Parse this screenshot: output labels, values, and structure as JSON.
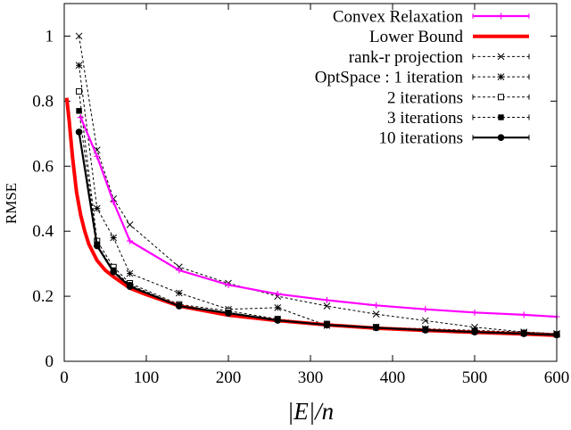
{
  "chart_data": {
    "type": "line",
    "title": "",
    "xlabel": "|E|/n",
    "ylabel": "RMSE",
    "xlim": [
      0,
      600
    ],
    "ylim": [
      0,
      1.1
    ],
    "xticks": [
      0,
      100,
      200,
      300,
      400,
      500,
      600
    ],
    "yticks": [
      0,
      0.2,
      0.4,
      0.6,
      0.8,
      1
    ],
    "xtick_labels": [
      "0",
      "100",
      "200",
      "300",
      "400",
      "500",
      "600"
    ],
    "ytick_labels": [
      "0",
      "0.2",
      "0.4",
      "0.6",
      "0.8",
      "1"
    ],
    "grid": false,
    "legend_position": "top-right",
    "series": [
      {
        "name": "Convex Relaxation",
        "color": "#ff00ff",
        "style": "solid",
        "marker": "plus",
        "x": [
          20,
          40,
          60,
          80,
          140,
          200,
          260,
          320,
          380,
          440,
          500,
          560,
          600
        ],
        "y": [
          0.75,
          0.63,
          0.49,
          0.37,
          0.28,
          0.235,
          0.207,
          0.188,
          0.172,
          0.16,
          0.15,
          0.143,
          0.137
        ]
      },
      {
        "name": "Lower Bound",
        "color": "#ff0000",
        "style": "solid",
        "marker": "none",
        "x": [
          3,
          6,
          10,
          15,
          20,
          25,
          30,
          40,
          50,
          60,
          80,
          100,
          140,
          200,
          260,
          320,
          380,
          440,
          500,
          560,
          600
        ],
        "y": [
          0.81,
          0.74,
          0.63,
          0.52,
          0.45,
          0.4,
          0.36,
          0.31,
          0.28,
          0.26,
          0.225,
          0.205,
          0.17,
          0.142,
          0.125,
          0.112,
          0.102,
          0.095,
          0.089,
          0.084,
          0.08
        ]
      },
      {
        "name": "rank-r projection",
        "color": "#000000",
        "style": "dashed",
        "marker": "x",
        "x": [
          18,
          40,
          60,
          80,
          140,
          200,
          260,
          320,
          380,
          440,
          500,
          560,
          600
        ],
        "y": [
          1.0,
          0.65,
          0.5,
          0.42,
          0.29,
          0.24,
          0.2,
          0.17,
          0.145,
          0.125,
          0.105,
          0.09,
          0.085
        ]
      },
      {
        "name": "OptSpace : 1 iteration",
        "color": "#000000",
        "style": "dashed",
        "marker": "star",
        "x": [
          18,
          40,
          60,
          80,
          140,
          200,
          260,
          320,
          380,
          440,
          500,
          560,
          600
        ],
        "y": [
          0.91,
          0.47,
          0.38,
          0.27,
          0.21,
          0.16,
          0.165,
          0.11,
          0.105,
          0.1,
          0.095,
          0.09,
          0.085
        ]
      },
      {
        "name": "2 iterations",
        "color": "#000000",
        "style": "dashed",
        "marker": "square-open",
        "x": [
          18,
          40,
          60,
          80,
          140,
          200,
          260,
          320,
          380,
          440,
          500,
          560,
          600
        ],
        "y": [
          0.83,
          0.37,
          0.29,
          0.24,
          0.175,
          0.155,
          0.13,
          0.115,
          0.105,
          0.098,
          0.092,
          0.087,
          0.083
        ]
      },
      {
        "name": "3 iterations",
        "color": "#000000",
        "style": "dashed",
        "marker": "square-filled",
        "x": [
          18,
          40,
          60,
          80,
          140,
          200,
          260,
          320,
          380,
          440,
          500,
          560,
          600
        ],
        "y": [
          0.77,
          0.36,
          0.28,
          0.235,
          0.172,
          0.15,
          0.128,
          0.113,
          0.104,
          0.097,
          0.091,
          0.086,
          0.082
        ]
      },
      {
        "name": "10 iterations",
        "color": "#000000",
        "style": "solid",
        "marker": "circle-filled",
        "x": [
          18,
          40,
          60,
          80,
          140,
          200,
          260,
          320,
          380,
          440,
          500,
          560,
          600
        ],
        "y": [
          0.705,
          0.355,
          0.275,
          0.23,
          0.17,
          0.148,
          0.126,
          0.112,
          0.103,
          0.096,
          0.09,
          0.085,
          0.081
        ]
      }
    ]
  }
}
